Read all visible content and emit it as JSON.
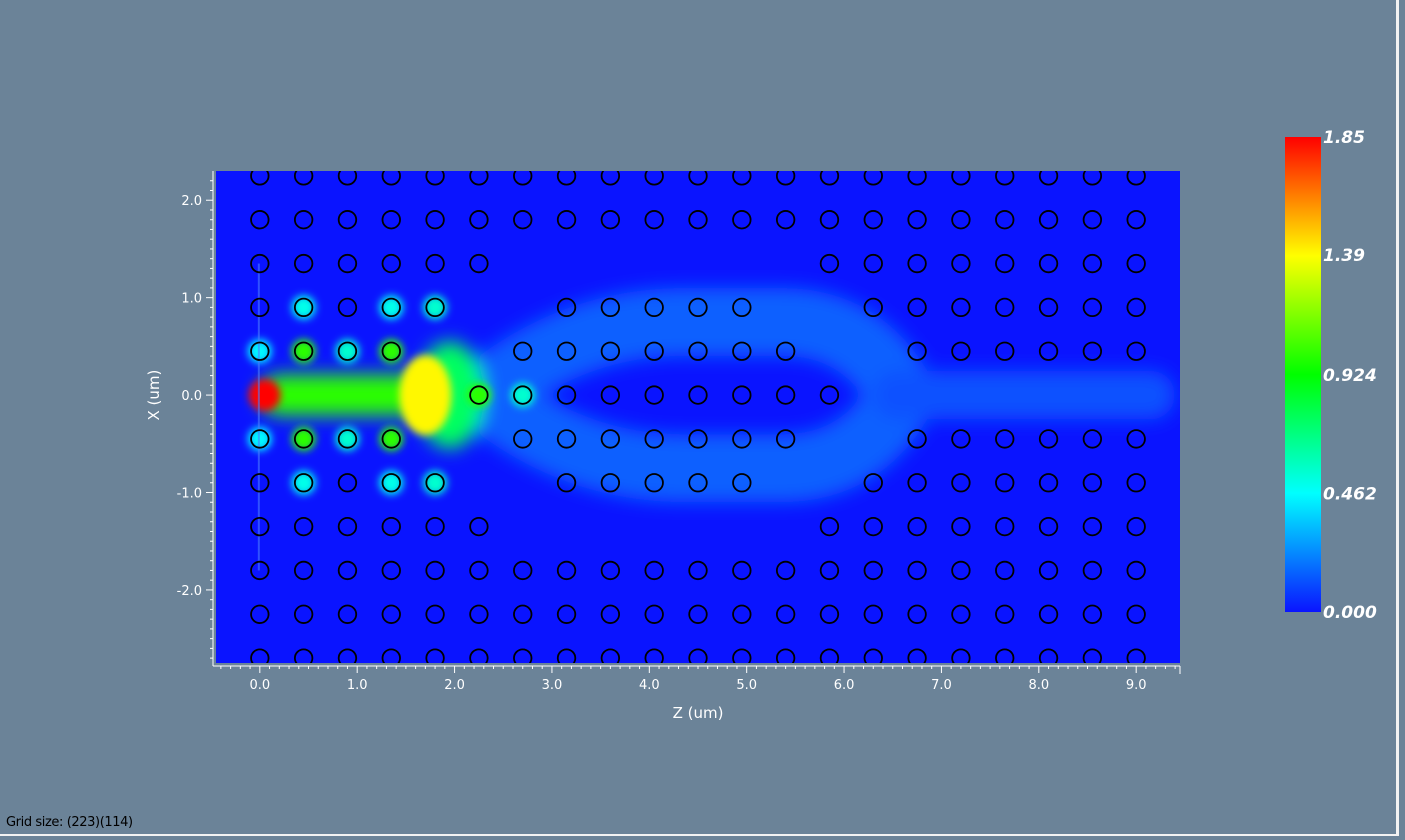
{
  "status_text": "Grid size: (223)(114)",
  "chart_data": {
    "type": "heatmap",
    "xlabel": "Z (um)",
    "ylabel": "X (um)",
    "xlim": [
      -0.45,
      9.45
    ],
    "ylim": [
      -2.75,
      2.3
    ],
    "x_ticks": [
      {
        "v": 0.0,
        "label": "0.0"
      },
      {
        "v": 1.0,
        "label": "1.0"
      },
      {
        "v": 2.0,
        "label": "2.0"
      },
      {
        "v": 3.0,
        "label": "3.0"
      },
      {
        "v": 4.0,
        "label": "4.0"
      },
      {
        "v": 5.0,
        "label": "5.0"
      },
      {
        "v": 6.0,
        "label": "6.0"
      },
      {
        "v": 7.0,
        "label": "7.0"
      },
      {
        "v": 8.0,
        "label": "8.0"
      },
      {
        "v": 9.0,
        "label": "9.0"
      }
    ],
    "y_ticks": [
      {
        "v": 2.0,
        "label": "2.0"
      },
      {
        "v": 1.0,
        "label": "1.0"
      },
      {
        "v": 0.0,
        "label": "0.0"
      },
      {
        "v": -1.0,
        "label": "-1.0"
      },
      {
        "v": -2.0,
        "label": "-2.0"
      }
    ],
    "colorbar": {
      "min": 0.0,
      "max": 1.85,
      "labels": [
        {
          "v": 1.85,
          "label": "1.85"
        },
        {
          "v": 1.39,
          "label": "1.39"
        },
        {
          "v": 0.924,
          "label": "0.924"
        },
        {
          "v": 0.462,
          "label": "0.462"
        },
        {
          "v": 0.0,
          "label": "0.000"
        }
      ],
      "colors": [
        "#0a14ff",
        "#00ffff",
        "#00ff00",
        "#ffff00",
        "#ff0000"
      ]
    },
    "rods": {
      "z_positions": [
        0,
        0.45,
        0.9,
        1.35,
        1.8,
        2.25,
        2.7,
        3.15,
        3.6,
        4.05,
        4.5,
        4.95,
        5.4,
        5.85,
        6.3,
        6.75,
        7.2,
        7.65,
        8.1,
        8.55,
        9.0
      ],
      "x_positions": [
        2.25,
        1.8,
        1.35,
        0.9,
        0.45,
        0.0,
        -0.45,
        -0.9,
        -1.35,
        -1.8,
        -2.25,
        -2.7
      ],
      "radius_um": 0.09,
      "rows": [
        {
          "x": 2.25,
          "cols": [
            0,
            1,
            2,
            3,
            4,
            5,
            6,
            7,
            8,
            9,
            10,
            11,
            12,
            13,
            14,
            15,
            16,
            17,
            18,
            19,
            20
          ]
        },
        {
          "x": 1.8,
          "cols": [
            0,
            1,
            2,
            3,
            4,
            5,
            6,
            7,
            8,
            9,
            10,
            11,
            12,
            13,
            14,
            15,
            16,
            17,
            18,
            19,
            20
          ]
        },
        {
          "x": 1.35,
          "cols": [
            0,
            1,
            2,
            3,
            4,
            5,
            13,
            14,
            15,
            16,
            17,
            18,
            19,
            20
          ]
        },
        {
          "x": 0.9,
          "cols": [
            0,
            1,
            2,
            3,
            4,
            7,
            8,
            9,
            10,
            11,
            14,
            15,
            16,
            17,
            18,
            19,
            20
          ]
        },
        {
          "x": 0.45,
          "cols": [
            0,
            1,
            2,
            3,
            6,
            7,
            8,
            9,
            10,
            11,
            12,
            15,
            16,
            17,
            18,
            19,
            20
          ]
        },
        {
          "x": 0.0,
          "cols": [
            5,
            6,
            7,
            8,
            9,
            10,
            11,
            12,
            13
          ]
        },
        {
          "x": -0.45,
          "cols": [
            0,
            1,
            2,
            3,
            6,
            7,
            8,
            9,
            10,
            11,
            12,
            15,
            16,
            17,
            18,
            19,
            20
          ]
        },
        {
          "x": -0.9,
          "cols": [
            0,
            1,
            2,
            3,
            4,
            7,
            8,
            9,
            10,
            11,
            14,
            15,
            16,
            17,
            18,
            19,
            20
          ]
        },
        {
          "x": -1.35,
          "cols": [
            0,
            1,
            2,
            3,
            4,
            5,
            13,
            14,
            15,
            16,
            17,
            18,
            19,
            20
          ]
        },
        {
          "x": -1.8,
          "cols": [
            0,
            1,
            2,
            3,
            4,
            5,
            6,
            7,
            8,
            9,
            10,
            11,
            12,
            13,
            14,
            15,
            16,
            17,
            18,
            19,
            20
          ]
        },
        {
          "x": -2.25,
          "cols": [
            0,
            1,
            2,
            3,
            4,
            5,
            6,
            7,
            8,
            9,
            10,
            11,
            12,
            13,
            14,
            15,
            16,
            17,
            18,
            19,
            20
          ]
        },
        {
          "x": -2.7,
          "cols": [
            0,
            1,
            2,
            3,
            4,
            5,
            6,
            7,
            8,
            9,
            10,
            11,
            12,
            13,
            14,
            15,
            16,
            17,
            18,
            19,
            20
          ]
        }
      ]
    },
    "field_features": [
      {
        "kind": "source-peak",
        "z": 0.05,
        "x": 0.0,
        "value": 1.85
      },
      {
        "kind": "taper-peak",
        "z": 1.7,
        "x": 0.0,
        "value": 1.4
      },
      {
        "kind": "waveguide-core",
        "z_range": [
          0.0,
          2.2
        ],
        "x": 0.0,
        "value": 1.0
      },
      {
        "kind": "rod-hotspot",
        "z": 2.25,
        "x": 0.0,
        "value": 1.0
      },
      {
        "kind": "rod-hotspot",
        "z": 2.7,
        "x": 0.0,
        "value": 0.55
      },
      {
        "kind": "split-branch-upper",
        "z_range": [
          2.3,
          6.6
        ],
        "x": 0.75,
        "value": 0.15
      },
      {
        "kind": "split-branch-lower",
        "z_range": [
          2.3,
          6.6
        ],
        "x": -0.75,
        "value": 0.15
      },
      {
        "kind": "output-guide",
        "z_range": [
          6.3,
          9.4
        ],
        "x": 0.0,
        "value": 0.12
      }
    ]
  }
}
